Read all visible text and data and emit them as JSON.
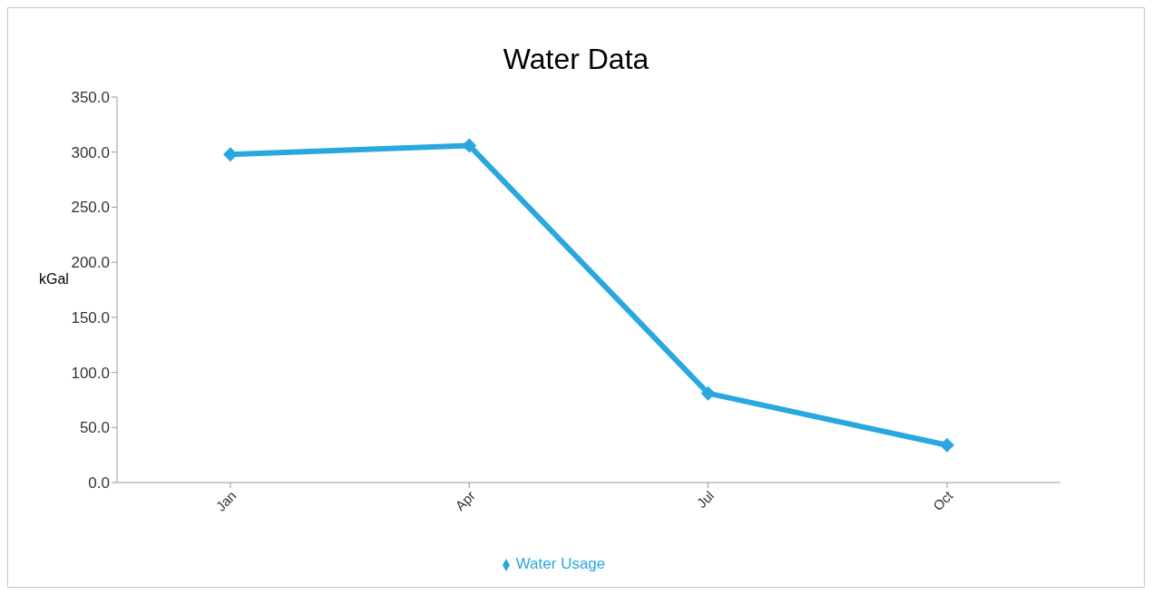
{
  "chart_data": {
    "type": "line",
    "title": "Water Data",
    "ylabel": "kGal",
    "categories": [
      "Jan",
      "Apr",
      "Jul",
      "Oct"
    ],
    "series": [
      {
        "name": "Water Usage",
        "color": "#29a8e0",
        "values": [
          298,
          306,
          81,
          34
        ]
      }
    ],
    "ylim": [
      0,
      350
    ],
    "yticks": [
      {
        "value": 0,
        "label": "0.0"
      },
      {
        "value": 50,
        "label": "50.0"
      },
      {
        "value": 100,
        "label": "100.0"
      },
      {
        "value": 150,
        "label": "150.0"
      },
      {
        "value": 200,
        "label": "200.0"
      },
      {
        "value": 250,
        "label": "250.0"
      },
      {
        "value": 300,
        "label": "300.0"
      },
      {
        "value": 350,
        "label": "350.0"
      }
    ],
    "grid": false,
    "legend": "bottom",
    "marker": "diamond",
    "line_style": "solid"
  }
}
